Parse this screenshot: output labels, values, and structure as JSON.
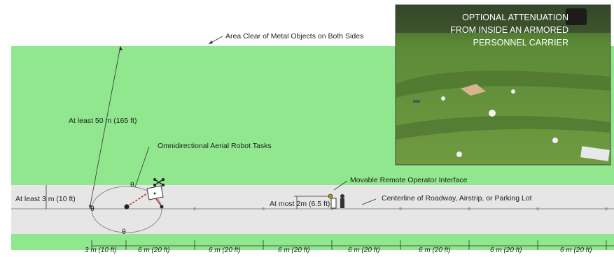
{
  "labels": {
    "area_clear": "Area Clear of Metal Objects on Both Sides",
    "at_least_50m": "At least 50 m (165 ft)",
    "aerial_tasks": "Omnidirectional Aerial Robot Tasks",
    "at_least_3m": "At least 3 m (10 ft)",
    "remote_interface": "Movable Remote Operator Interface",
    "at_most_2m": "At most 2m (6.5 ft)",
    "centerline": "Centerline of Roadway, Airstrip, or Parking Lot"
  },
  "dimensions": {
    "first": "3 m (10 ft)",
    "segments": [
      "6 m (20 ft)",
      "6 m (20 ft)",
      "6 m (20 ft)",
      "6 m (20 ft)",
      "6 m (20 ft)",
      "6 m (20 ft)",
      "6 m (20 ft)"
    ]
  },
  "photo": {
    "caption_lines": [
      "OPTIONAL ATTENUATION",
      "FROM INSIDE AN ARMORED",
      "PERSONNEL CARRIER"
    ]
  },
  "colors": {
    "grass": "#90e78e",
    "road": "#e6e6e6",
    "line": "#8a8a8a",
    "photo_grass": "#5f8a3a"
  }
}
